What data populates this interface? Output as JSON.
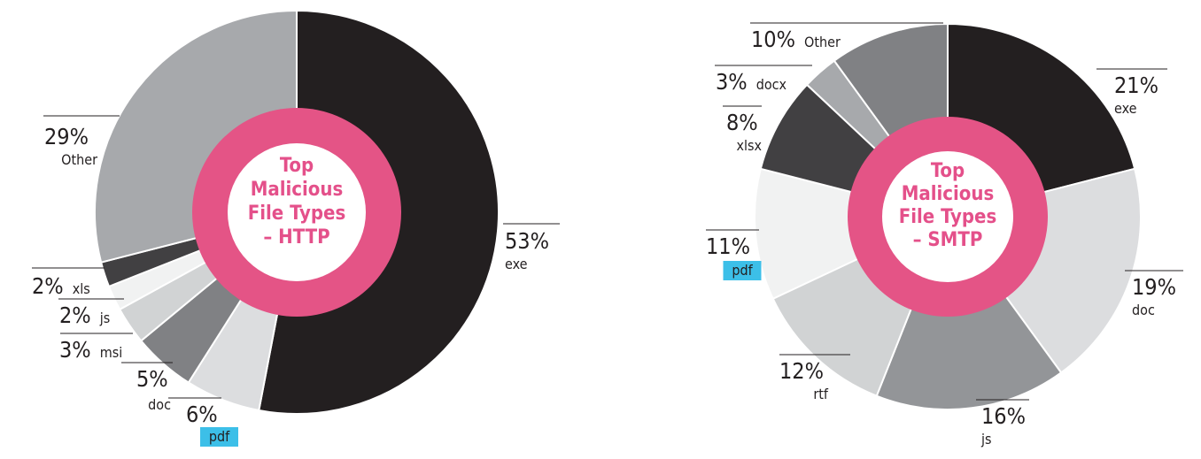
{
  "colors": {
    "ring": "#e45486",
    "title": "#e4508a",
    "highlight": "#3cbfe8",
    "text": "#231f20"
  },
  "chart_data": [
    {
      "type": "pie",
      "title_lines": [
        "Top",
        "Malicious",
        "File Types",
        "– HTTP"
      ],
      "slices": [
        {
          "label": "exe",
          "value": 53,
          "display": "53%",
          "color": "#231f20"
        },
        {
          "label": "pdf",
          "value": 6,
          "display": "6%",
          "color": "#dcdddf",
          "highlight": true
        },
        {
          "label": "doc",
          "value": 5,
          "display": "5%",
          "color": "#808184"
        },
        {
          "label": "msi",
          "value": 3,
          "display": "3%",
          "color": "#d1d3d4"
        },
        {
          "label": "js",
          "value": 2,
          "display": "2%",
          "color": "#f1f2f2"
        },
        {
          "label": "xls",
          "value": 2,
          "display": "2%",
          "color": "#414042"
        },
        {
          "label": "Other",
          "value": 29,
          "display": "29%",
          "color": "#a7a9ac"
        }
      ]
    },
    {
      "type": "pie",
      "title_lines": [
        "Top",
        "Malicious",
        "File Types",
        "– SMTP"
      ],
      "slices": [
        {
          "label": "exe",
          "value": 21,
          "display": "21%",
          "color": "#231f20"
        },
        {
          "label": "doc",
          "value": 19,
          "display": "19%",
          "color": "#dcdddf"
        },
        {
          "label": "js",
          "value": 16,
          "display": "16%",
          "color": "#939598"
        },
        {
          "label": "rtf",
          "value": 12,
          "display": "12%",
          "color": "#d1d3d4"
        },
        {
          "label": "pdf",
          "value": 11,
          "display": "11%",
          "color": "#f1f2f2",
          "highlight": true
        },
        {
          "label": "xlsx",
          "value": 8,
          "display": "8%",
          "color": "#414042"
        },
        {
          "label": "docx",
          "value": 3,
          "display": "3%",
          "color": "#a7a9ac"
        },
        {
          "label": "Other",
          "value": 10,
          "display": "10%",
          "color": "#808184"
        }
      ]
    }
  ]
}
